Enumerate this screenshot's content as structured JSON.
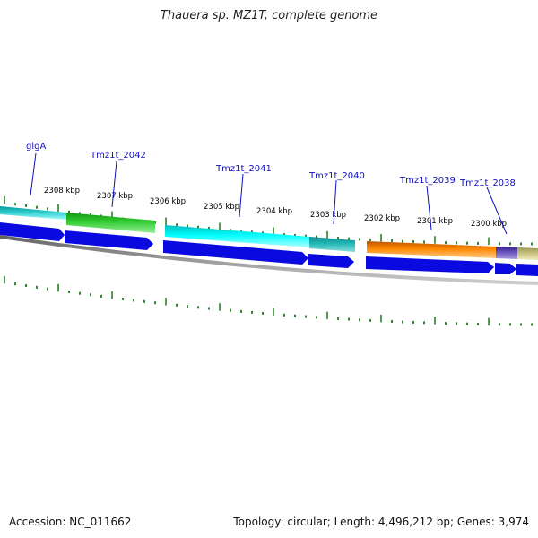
{
  "title": "Thauera sp. MZ1T, complete genome",
  "footer": {
    "accession": "Accession: NC_011662",
    "summary": "Topology: circular; Length: 4,496,212 bp; Genes: 3,974"
  },
  "scale_labels": [
    "2308 kbp",
    "2307 kbp",
    "2306 kbp",
    "2305 kbp",
    "2304 kbp",
    "2303 kbp",
    "2302 kbp",
    "2301 kbp",
    "2300 kbp"
  ],
  "genes": [
    "glgA",
    "Tmz1t_2042",
    "Tmz1t_2041",
    "Tmz1t_2040",
    "Tmz1t_2039",
    "Tmz1t_2038"
  ],
  "colors": {
    "tick": "#1a7a1a",
    "label_line": "#1010c0",
    "cds_arrow": "#0a0ae0",
    "backbone": "#808080",
    "glgA": "#33cccc",
    "Tmz1t_2042": "#33cc33",
    "Tmz1t_2041": "#00ffff",
    "Tmz1t_2040": "#22b8b8",
    "Tmz1t_2039": "#ff8800",
    "Tmz1t_2038": "#6655bb",
    "next_gene": "#c8c080"
  }
}
